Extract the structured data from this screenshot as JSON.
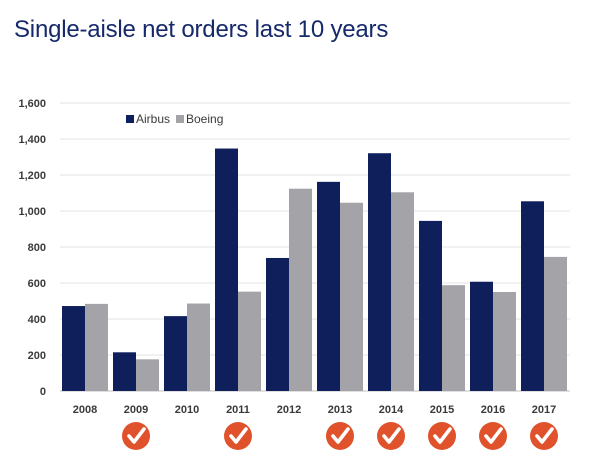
{
  "chart_data": {
    "type": "bar",
    "title": "Single-aisle net orders last 10 years",
    "categories": [
      "2008",
      "2009",
      "2010",
      "2011",
      "2012",
      "2013",
      "2014",
      "2015",
      "2016",
      "2017"
    ],
    "series": [
      {
        "name": "Airbus",
        "color": "#0f1f5c",
        "values": [
          472,
          215,
          416,
          1347,
          739,
          1162,
          1321,
          945,
          607,
          1054
        ]
      },
      {
        "name": "Boeing",
        "color": "#a4a4a8",
        "values": [
          484,
          176,
          486,
          552,
          1124,
          1046,
          1104,
          588,
          550,
          745
        ]
      }
    ],
    "ylim": [
      0,
      1600
    ],
    "yticks": [
      0,
      200,
      400,
      600,
      800,
      1000,
      1200,
      1400,
      1600
    ],
    "ytick_labels": [
      "0",
      "200",
      "400",
      "600",
      "800",
      "1,000",
      "1,200",
      "1,400",
      "1,600"
    ],
    "grid": true,
    "legend": "top-left",
    "checkmark_icon": "check-badge-icon",
    "checkmark_color": "#e0522c",
    "checked_categories": [
      "2009",
      "2011",
      "2013",
      "2014",
      "2015",
      "2016",
      "2017"
    ]
  }
}
